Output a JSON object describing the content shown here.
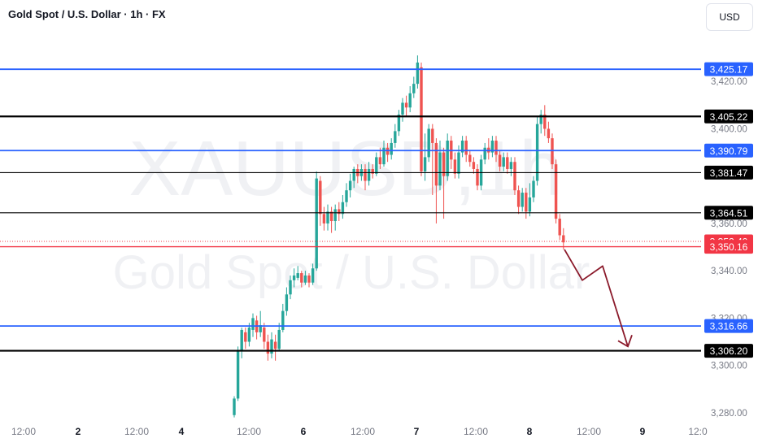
{
  "header": {
    "title": "Gold Spot / U.S. Dollar · 1h · FX",
    "currency_button": "USD"
  },
  "watermark": {
    "symbol": "XAUUSD,1h",
    "name": "Gold Spot / U.S. Dollar"
  },
  "colors": {
    "up": "#26a69a",
    "down": "#ef5350",
    "blue_level": "#2962ff",
    "black_level": "#000000",
    "red_level": "#f23645",
    "arrow": "#8b1a2b",
    "axis_text": "#787b86"
  },
  "chart_data": {
    "type": "candlestick",
    "symbol": "Gold Spot / U.S. Dollar",
    "timeframe": "1h",
    "y_axis": {
      "range": [
        3276,
        3440
      ],
      "tick_labels": [
        "3,420.00",
        "3,400.00",
        "3,360.00",
        "3,340.00",
        "3,320.00",
        "3,300.00",
        "3,280.00"
      ],
      "tick_values": [
        3420,
        3400,
        3360,
        3340,
        3320,
        3300,
        3280
      ]
    },
    "x_axis": {
      "tick_labels": [
        "12:00",
        "2",
        "12:00",
        "4",
        "12:00",
        "6",
        "12:00",
        "7",
        "12:00",
        "8",
        "12:00",
        "9",
        "12:0"
      ],
      "tick_bold": [
        false,
        true,
        false,
        true,
        false,
        true,
        false,
        true,
        false,
        true,
        false,
        true,
        false
      ]
    },
    "horizontal_levels": [
      {
        "value": 3425.17,
        "label": "3,425.17",
        "style": "blue"
      },
      {
        "value": 3405.22,
        "label": "3,405.22",
        "style": "black-thick"
      },
      {
        "value": 3390.79,
        "label": "3,390.79",
        "style": "blue"
      },
      {
        "value": 3381.47,
        "label": "3,381.47",
        "style": "black"
      },
      {
        "value": 3364.51,
        "label": "3,364.51",
        "style": "black"
      },
      {
        "value": 3352.4,
        "label": "3,352.40",
        "style": "red-dotted"
      },
      {
        "value": 3350.16,
        "label": "3,350.16",
        "style": "red"
      },
      {
        "value": 3316.66,
        "label": "3,316.66",
        "style": "blue"
      },
      {
        "value": 3306.2,
        "label": "3,306.20",
        "style": "black-thick"
      }
    ],
    "projection_path": [
      3349,
      3336,
      3342,
      3308
    ],
    "candles": [
      [
        3279,
        3286,
        3278,
        3287
      ],
      [
        3286,
        3306,
        3285,
        3308
      ],
      [
        3306,
        3315,
        3303,
        3316
      ],
      [
        3314,
        3310,
        3307,
        3316
      ],
      [
        3310,
        3316,
        3308,
        3318
      ],
      [
        3315,
        3320,
        3312,
        3322
      ],
      [
        3319,
        3314,
        3311,
        3321
      ],
      [
        3314,
        3317,
        3312,
        3323
      ],
      [
        3316,
        3310,
        3307,
        3318
      ],
      [
        3310,
        3305,
        3302,
        3313
      ],
      [
        3305,
        3311,
        3303,
        3314
      ],
      [
        3310,
        3307,
        3302,
        3313
      ],
      [
        3307,
        3315,
        3306,
        3318
      ],
      [
        3315,
        3323,
        3314,
        3326
      ],
      [
        3323,
        3330,
        3321,
        3333
      ],
      [
        3330,
        3336,
        3328,
        3338
      ],
      [
        3336,
        3338,
        3333,
        3341
      ],
      [
        3337,
        3339,
        3336,
        3342
      ],
      [
        3339,
        3335,
        3333,
        3340
      ],
      [
        3335,
        3338,
        3334,
        3340
      ],
      [
        3338,
        3335,
        3333,
        3339
      ],
      [
        3335,
        3341,
        3334,
        3343
      ],
      [
        3341,
        3379,
        3340,
        3382
      ],
      [
        3378,
        3364,
        3359,
        3380
      ],
      [
        3364,
        3360,
        3357,
        3367
      ],
      [
        3360,
        3365,
        3357,
        3368
      ],
      [
        3365,
        3361,
        3356,
        3367
      ],
      [
        3361,
        3366,
        3357,
        3368
      ],
      [
        3366,
        3364,
        3361,
        3369
      ],
      [
        3364,
        3369,
        3362,
        3372
      ],
      [
        3369,
        3374,
        3367,
        3377
      ],
      [
        3374,
        3378,
        3371,
        3381
      ],
      [
        3378,
        3383,
        3375,
        3384
      ],
      [
        3383,
        3380,
        3377,
        3385
      ],
      [
        3380,
        3383,
        3378,
        3385
      ],
      [
        3383,
        3378,
        3374,
        3385
      ],
      [
        3378,
        3383,
        3376,
        3386
      ],
      [
        3383,
        3381,
        3379,
        3385
      ],
      [
        3381,
        3388,
        3380,
        3390
      ],
      [
        3388,
        3385,
        3383,
        3392
      ],
      [
        3385,
        3392,
        3384,
        3395
      ],
      [
        3392,
        3389,
        3386,
        3394
      ],
      [
        3389,
        3394,
        3387,
        3396
      ],
      [
        3394,
        3399,
        3392,
        3402
      ],
      [
        3399,
        3406,
        3397,
        3408
      ],
      [
        3406,
        3411,
        3403,
        3413
      ],
      [
        3411,
        3409,
        3405,
        3414
      ],
      [
        3409,
        3415,
        3407,
        3418
      ],
      [
        3415,
        3419,
        3413,
        3422
      ],
      [
        3419,
        3428,
        3417,
        3431
      ],
      [
        3426,
        3382,
        3380,
        3428
      ],
      [
        3382,
        3388,
        3378,
        3398
      ],
      [
        3388,
        3400,
        3386,
        3402
      ],
      [
        3400,
        3394,
        3372,
        3402
      ],
      [
        3394,
        3376,
        3360,
        3396
      ],
      [
        3376,
        3390,
        3374,
        3395
      ],
      [
        3390,
        3380,
        3362,
        3392
      ],
      [
        3380,
        3395,
        3378,
        3398
      ],
      [
        3395,
        3387,
        3383,
        3397
      ],
      [
        3387,
        3381,
        3379,
        3390
      ],
      [
        3381,
        3390,
        3379,
        3393
      ],
      [
        3390,
        3395,
        3388,
        3397
      ],
      [
        3395,
        3389,
        3386,
        3397
      ],
      [
        3389,
        3386,
        3384,
        3391
      ],
      [
        3386,
        3383,
        3381,
        3388
      ],
      [
        3383,
        3376,
        3374,
        3385
      ],
      [
        3376,
        3387,
        3374,
        3389
      ],
      [
        3387,
        3392,
        3385,
        3394
      ],
      [
        3392,
        3390,
        3387,
        3396
      ],
      [
        3390,
        3395,
        3388,
        3397
      ],
      [
        3395,
        3389,
        3386,
        3397
      ],
      [
        3389,
        3384,
        3382,
        3391
      ],
      [
        3384,
        3388,
        3382,
        3390
      ],
      [
        3388,
        3383,
        3381,
        3390
      ],
      [
        3383,
        3386,
        3380,
        3388
      ],
      [
        3386,
        3374,
        3372,
        3388
      ],
      [
        3374,
        3367,
        3364,
        3376
      ],
      [
        3367,
        3373,
        3365,
        3375
      ],
      [
        3373,
        3365,
        3362,
        3375
      ],
      [
        3365,
        3371,
        3363,
        3377
      ],
      [
        3371,
        3378,
        3369,
        3380
      ],
      [
        3378,
        3402,
        3376,
        3405
      ],
      [
        3402,
        3406,
        3398,
        3408
      ],
      [
        3406,
        3400,
        3397,
        3410
      ],
      [
        3400,
        3396,
        3394,
        3403
      ],
      [
        3396,
        3385,
        3383,
        3398
      ],
      [
        3385,
        3362,
        3360,
        3387
      ],
      [
        3362,
        3355,
        3353,
        3364
      ],
      [
        3355,
        3352,
        3349,
        3358
      ]
    ]
  }
}
